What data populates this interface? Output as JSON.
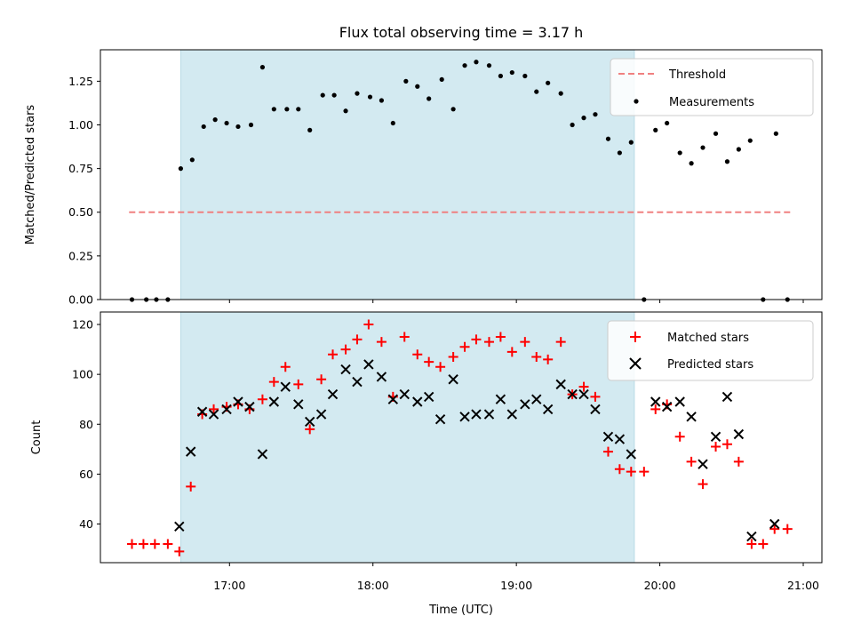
{
  "chart_data": [
    {
      "type": "scatter",
      "title": "Flux total observing time = 3.17 h",
      "xlabel": "",
      "ylabel": "Matched/Predicted stars",
      "xlim": [
        16.1,
        21.13
      ],
      "ylim": [
        0,
        1.43
      ],
      "yticks": [
        0,
        0.25,
        0.5,
        0.75,
        1.0,
        1.25
      ],
      "ytick_labels": [
        "0.00",
        "0.25",
        "0.50",
        "0.75",
        "1.00",
        "1.25"
      ],
      "xticks": [
        17,
        18,
        19,
        20,
        21
      ],
      "highlight_span": [
        16.65,
        19.81
      ],
      "threshold": {
        "name": "Threshold",
        "value": 0.5,
        "x_range": [
          16.3,
          20.93
        ]
      },
      "legend_position": "upper right",
      "series": [
        {
          "name": "Measurements",
          "color": "#000000",
          "x": [
            16.32,
            16.42,
            16.49,
            16.57,
            16.66,
            16.74,
            16.82,
            16.9,
            16.98,
            17.06,
            17.15,
            17.23,
            17.31,
            17.4,
            17.48,
            17.56,
            17.65,
            17.73,
            17.81,
            17.89,
            17.98,
            18.06,
            18.14,
            18.23,
            18.31,
            18.39,
            18.48,
            18.56,
            18.64,
            18.72,
            18.81,
            18.89,
            18.97,
            19.06,
            19.14,
            19.22,
            19.31,
            19.39,
            19.47,
            19.55,
            19.64,
            19.72,
            19.8,
            19.89,
            19.97,
            20.05,
            20.14,
            20.22,
            20.3,
            20.39,
            20.47,
            20.55,
            20.63,
            20.72,
            20.81,
            20.89
          ],
          "y": [
            0,
            0,
            0,
            0,
            0.75,
            0.8,
            0.99,
            1.03,
            1.01,
            0.99,
            1.0,
            1.33,
            1.09,
            1.09,
            1.09,
            0.97,
            1.17,
            1.17,
            1.08,
            1.18,
            1.16,
            1.14,
            1.01,
            1.25,
            1.22,
            1.15,
            1.26,
            1.09,
            1.34,
            1.36,
            1.34,
            1.28,
            1.3,
            1.28,
            1.19,
            1.24,
            1.18,
            1.0,
            1.04,
            1.06,
            0.92,
            0.84,
            0.9,
            0.0,
            0.97,
            1.01,
            0.84,
            0.78,
            0.87,
            0.95,
            0.79,
            0.86,
            0.91,
            0.0,
            0.95,
            0.0
          ]
        }
      ]
    },
    {
      "type": "scatter",
      "title": "",
      "xlabel": "Time (UTC)",
      "ylabel": "Count",
      "xlim": [
        16.1,
        21.13
      ],
      "ylim": [
        24.5,
        125
      ],
      "yticks": [
        40,
        60,
        80,
        100,
        120
      ],
      "ytick_labels": [
        "40",
        "60",
        "80",
        "100",
        "120"
      ],
      "xticks": [
        17,
        18,
        19,
        20,
        21
      ],
      "xtick_labels": [
        "17:00",
        "18:00",
        "19:00",
        "20:00",
        "21:00"
      ],
      "highlight_span": [
        16.65,
        19.81
      ],
      "legend_position": "upper right",
      "series": [
        {
          "name": "Matched stars",
          "color": "#ff0000",
          "marker": "plus",
          "x": [
            16.32,
            16.4,
            16.48,
            16.57,
            16.65,
            16.73,
            16.81,
            16.89,
            16.98,
            17.06,
            17.14,
            17.23,
            17.31,
            17.39,
            17.48,
            17.56,
            17.64,
            17.72,
            17.81,
            17.89,
            17.97,
            18.06,
            18.14,
            18.22,
            18.31,
            18.39,
            18.47,
            18.56,
            18.64,
            18.72,
            18.81,
            18.89,
            18.97,
            19.06,
            19.14,
            19.22,
            19.31,
            19.39,
            19.47,
            19.55,
            19.64,
            19.72,
            19.8,
            19.89,
            19.97,
            20.05,
            20.14,
            20.22,
            20.3,
            20.39,
            20.47,
            20.55,
            20.64,
            20.72,
            20.8,
            20.89
          ],
          "y": [
            32,
            32,
            32,
            32,
            29,
            55,
            84,
            86,
            87,
            88,
            86,
            90,
            97,
            103,
            96,
            78,
            98,
            108,
            110,
            114,
            120,
            113,
            91,
            115,
            108,
            105,
            103,
            107,
            111,
            114,
            113,
            115,
            109,
            113,
            107,
            106,
            113,
            92,
            95,
            91,
            69,
            62,
            61,
            61,
            86,
            88,
            75,
            65,
            56,
            71,
            72,
            65,
            32,
            32,
            38,
            38
          ]
        },
        {
          "name": "Predicted stars",
          "color": "#000000",
          "marker": "x",
          "x": [
            16.65,
            16.73,
            16.81,
            16.89,
            16.98,
            17.06,
            17.14,
            17.23,
            17.31,
            17.39,
            17.48,
            17.56,
            17.64,
            17.72,
            17.81,
            17.89,
            17.97,
            18.06,
            18.14,
            18.22,
            18.31,
            18.39,
            18.47,
            18.56,
            18.64,
            18.72,
            18.81,
            18.89,
            18.97,
            19.06,
            19.14,
            19.22,
            19.31,
            19.39,
            19.47,
            19.55,
            19.64,
            19.72,
            19.8,
            19.97,
            20.05,
            20.14,
            20.22,
            20.3,
            20.39,
            20.47,
            20.55,
            20.64,
            20.8
          ],
          "y": [
            39,
            69,
            85,
            84,
            86,
            89,
            87,
            68,
            89,
            95,
            88,
            81,
            84,
            92,
            102,
            97,
            104,
            99,
            90,
            92,
            89,
            91,
            82,
            98,
            83,
            84,
            84,
            90,
            84,
            88,
            90,
            86,
            96,
            92,
            92,
            86,
            75,
            74,
            68,
            89,
            87,
            89,
            83,
            64,
            75,
            91,
            76,
            35,
            40
          ]
        }
      ]
    }
  ]
}
